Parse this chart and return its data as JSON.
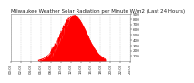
{
  "title": "Milwaukee Weather Solar Radiation per Minute W/m2 (Last 24 Hours)",
  "title_fontsize": 4.0,
  "background_color": "#ffffff",
  "plot_bg_color": "#ffffff",
  "line_color": "#ff0000",
  "fill_color": "#ff0000",
  "fill_alpha": 1.0,
  "ylim": [
    0,
    900
  ],
  "xlim": [
    0,
    1440
  ],
  "yticks": [
    100,
    200,
    300,
    400,
    500,
    600,
    700,
    800,
    900
  ],
  "ytick_fontsize": 3.0,
  "xtick_fontsize": 2.8,
  "grid_color": "#bbbbbb",
  "grid_style": "--",
  "grid_alpha": 0.8,
  "num_points": 1440,
  "peak_minute": 760,
  "peak_value": 870,
  "start_minute": 330,
  "end_minute": 1140,
  "sigma": 155
}
